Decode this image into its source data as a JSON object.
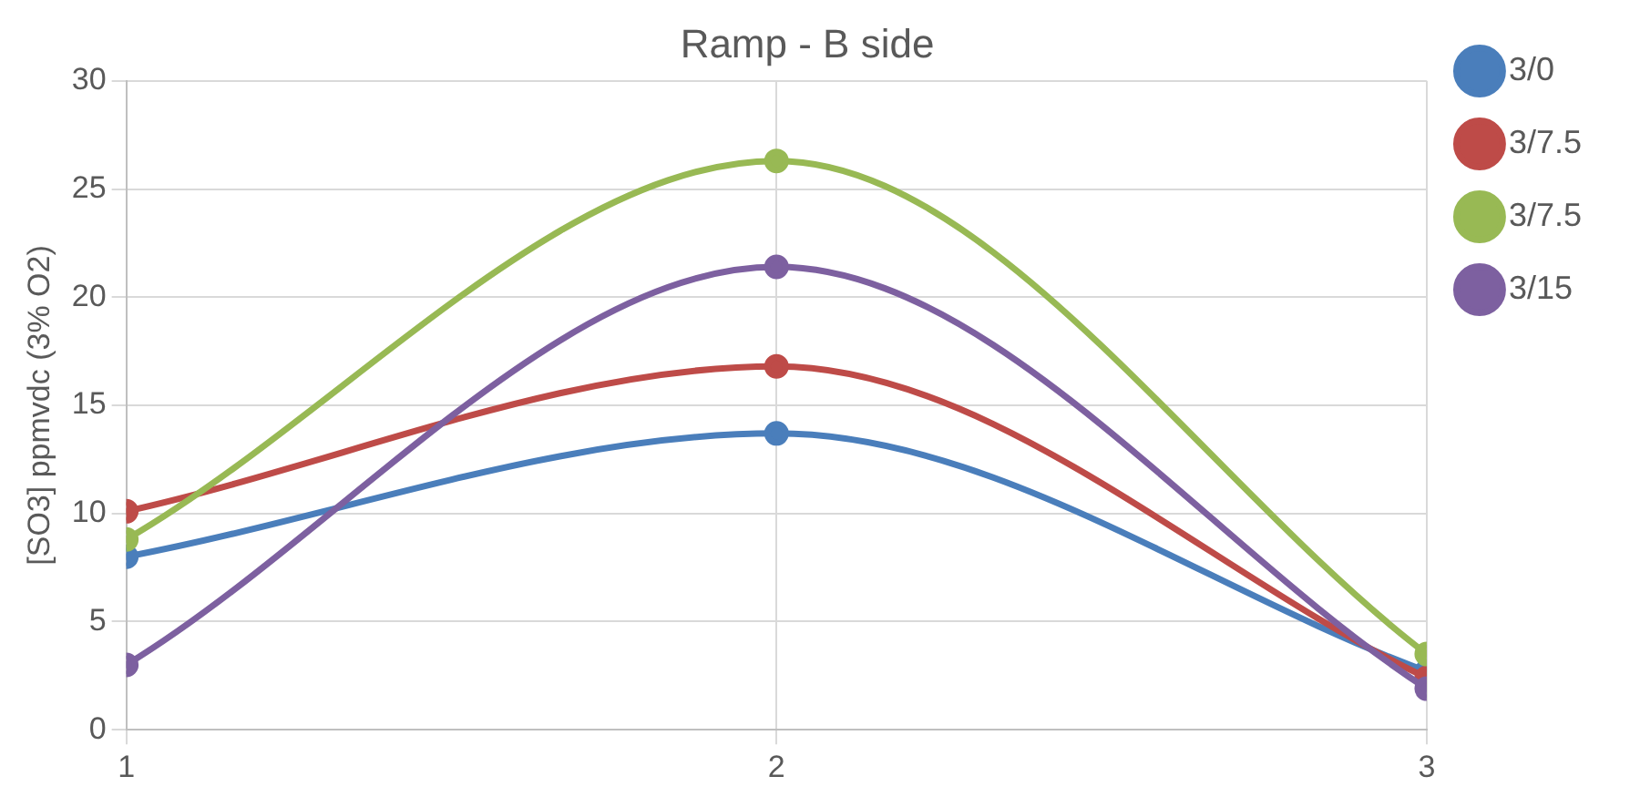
{
  "chart_data": {
    "type": "line",
    "title": "Ramp - B side",
    "ylabel": "[SO3] ppmvdc (3% O2)",
    "x": [
      1,
      2,
      3
    ],
    "series": [
      {
        "name": "3/0",
        "color": "#4a7ebb",
        "values": [
          8.0,
          13.7,
          2.7
        ]
      },
      {
        "name": "3/7.5",
        "color": "#be4b48",
        "values": [
          10.1,
          16.8,
          2.4
        ]
      },
      {
        "name": "3/7.5",
        "color": "#98b954",
        "values": [
          8.8,
          26.3,
          3.5
        ]
      },
      {
        "name": "3/15",
        "color": "#7d60a0",
        "values": [
          3.0,
          21.4,
          1.9
        ]
      }
    ],
    "xlim": [
      1,
      3
    ],
    "xticks": [
      1,
      2,
      3
    ],
    "ylim": [
      0,
      30
    ],
    "yticks": [
      0,
      5,
      10,
      15,
      20,
      25,
      30
    ],
    "grid": true,
    "legend": "top right",
    "marker": "circle",
    "line_style": "solid"
  }
}
